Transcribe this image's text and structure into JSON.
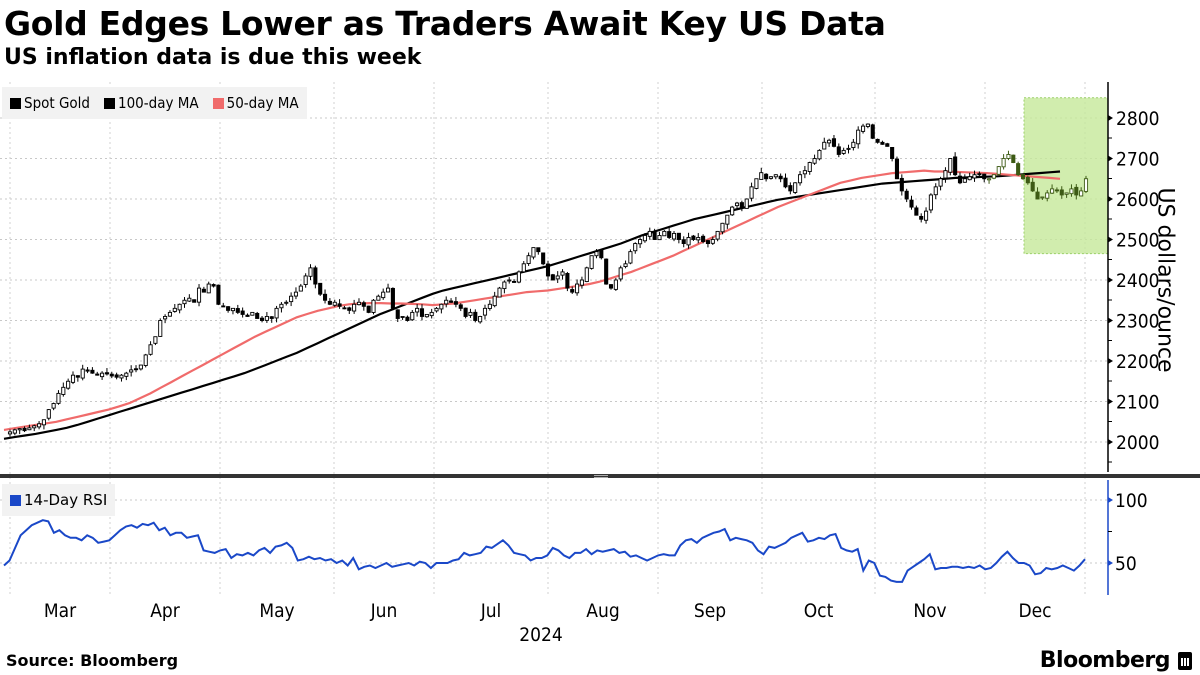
{
  "header": {
    "title": "Gold Edges Lower as Traders Await Key US Data",
    "subtitle": "US inflation data is due this week"
  },
  "footer": {
    "source": "Source: Bloomberg",
    "brand": "Bloomberg"
  },
  "colors": {
    "spot_gold": "#000000",
    "ma100": "#000000",
    "ma50": "#f06b6b",
    "rsi": "#1a48c8",
    "highlight": "#c6e89a",
    "axis_blue": "#1a48c8"
  },
  "chart_data": [
    {
      "type": "candlestick",
      "title": "Gold Edges Lower as Traders Await Key US Data",
      "subtitle": "US inflation data is due this week",
      "ylabel": "US dollars/ounce",
      "ylim": [
        1930,
        2850
      ],
      "yticks": [
        2000,
        2100,
        2200,
        2300,
        2400,
        2500,
        2600,
        2700,
        2800
      ],
      "grid": true,
      "legend": [
        {
          "name": "Spot Gold",
          "color": "#000000"
        },
        {
          "name": "100-day MA",
          "color": "#000000"
        },
        {
          "name": "50-day MA",
          "color": "#f06b6b"
        }
      ],
      "legend_position": "top-left",
      "highlight_region": {
        "x_from_index": 202,
        "x_to_index": 214,
        "y_from": 2465,
        "y_to": 2850
      },
      "ohlc_closes": [
        2025,
        2030,
        2033,
        2028,
        2035,
        2040,
        2045,
        2055,
        2080,
        2095,
        2120,
        2135,
        2150,
        2165,
        2160,
        2180,
        2175,
        2170,
        2165,
        2170,
        2168,
        2163,
        2160,
        2165,
        2170,
        2178,
        2180,
        2190,
        2215,
        2240,
        2260,
        2300,
        2310,
        2320,
        2330,
        2340,
        2350,
        2355,
        2345,
        2380,
        2370,
        2390,
        2385,
        2340,
        2335,
        2325,
        2330,
        2320,
        2315,
        2310,
        2320,
        2305,
        2300,
        2310,
        2305,
        2330,
        2340,
        2345,
        2360,
        2370,
        2385,
        2410,
        2430,
        2390,
        2365,
        2350,
        2340,
        2345,
        2335,
        2330,
        2325,
        2340,
        2345,
        2335,
        2320,
        2350,
        2360,
        2370,
        2380,
        2330,
        2305,
        2310,
        2300,
        2320,
        2330,
        2310,
        2315,
        2320,
        2330,
        2340,
        2350,
        2345,
        2340,
        2330,
        2310,
        2320,
        2300,
        2310,
        2330,
        2340,
        2360,
        2380,
        2395,
        2400,
        2395,
        2420,
        2440,
        2460,
        2480,
        2470,
        2440,
        2410,
        2400,
        2410,
        2420,
        2380,
        2370,
        2390,
        2400,
        2430,
        2460,
        2470,
        2455,
        2390,
        2380,
        2400,
        2430,
        2440,
        2470,
        2490,
        2500,
        2510,
        2520,
        2500,
        2510,
        2520,
        2505,
        2515,
        2500,
        2490,
        2505,
        2500,
        2505,
        2495,
        2490,
        2500,
        2520,
        2540,
        2560,
        2580,
        2590,
        2580,
        2600,
        2630,
        2650,
        2665,
        2650,
        2655,
        2660,
        2650,
        2630,
        2620,
        2640,
        2660,
        2670,
        2690,
        2700,
        2720,
        2740,
        2745,
        2730,
        2710,
        2720,
        2725,
        2740,
        2770,
        2780,
        2785,
        2750,
        2740,
        2735,
        2730,
        2700,
        2650,
        2620,
        2600,
        2580,
        2560,
        2550,
        2570,
        2610,
        2630,
        2650,
        2670,
        2700,
        2660,
        2640,
        2650,
        2655,
        2660,
        2660,
        2650,
        2650,
        2660,
        2680,
        2700,
        2710,
        2690,
        2660,
        2650,
        2640,
        2620,
        2600,
        2605,
        2615,
        2625,
        2620,
        2610,
        2615,
        2625,
        2610,
        2620,
        2650
      ],
      "ma50": [
        2030,
        2034,
        2038,
        2042,
        2046,
        2050,
        2056,
        2062,
        2068,
        2074,
        2080,
        2088,
        2096,
        2108,
        2120,
        2134,
        2148,
        2162,
        2176,
        2190,
        2204,
        2218,
        2232,
        2246,
        2260,
        2272,
        2284,
        2296,
        2308,
        2316,
        2324,
        2330,
        2336,
        2340,
        2342,
        2343,
        2343,
        2342,
        2342,
        2341,
        2340,
        2338,
        2340,
        2342,
        2346,
        2350,
        2354,
        2358,
        2362,
        2366,
        2370,
        2372,
        2374,
        2378,
        2382,
        2386,
        2390,
        2396,
        2404,
        2412,
        2420,
        2430,
        2440,
        2450,
        2460,
        2472,
        2484,
        2496,
        2508,
        2520,
        2532,
        2544,
        2556,
        2568,
        2580,
        2590,
        2600,
        2610,
        2620,
        2630,
        2640,
        2646,
        2652,
        2656,
        2660,
        2664,
        2666,
        2668,
        2670,
        2668,
        2668,
        2667,
        2666,
        2665,
        2664,
        2662,
        2660,
        2658,
        2656,
        2654,
        2652,
        2650
      ],
      "ma100": [
        2008,
        2012,
        2016,
        2020,
        2025,
        2030,
        2035,
        2042,
        2050,
        2058,
        2066,
        2074,
        2082,
        2090,
        2098,
        2106,
        2114,
        2122,
        2130,
        2138,
        2146,
        2154,
        2162,
        2170,
        2180,
        2190,
        2200,
        2210,
        2220,
        2232,
        2244,
        2256,
        2268,
        2280,
        2292,
        2304,
        2316,
        2326,
        2336,
        2346,
        2356,
        2366,
        2374,
        2380,
        2386,
        2392,
        2398,
        2404,
        2410,
        2416,
        2422,
        2428,
        2434,
        2442,
        2450,
        2458,
        2466,
        2474,
        2482,
        2490,
        2500,
        2510,
        2518,
        2526,
        2534,
        2542,
        2550,
        2556,
        2562,
        2568,
        2574,
        2580,
        2586,
        2592,
        2598,
        2602,
        2606,
        2610,
        2614,
        2618,
        2622,
        2626,
        2630,
        2634,
        2638,
        2640,
        2642,
        2644,
        2646,
        2648,
        2650,
        2652,
        2653,
        2654,
        2655,
        2656,
        2658,
        2660,
        2662,
        2664,
        2666,
        2668
      ]
    },
    {
      "type": "line",
      "title": "14-Day RSI",
      "ylim": [
        22,
        118
      ],
      "yticks": [
        50,
        100
      ],
      "grid": true,
      "legend": [
        {
          "name": "14-Day RSI",
          "color": "#1a48c8"
        }
      ],
      "legend_position": "top-left",
      "values": [
        48,
        52,
        62,
        72,
        76,
        80,
        82,
        84,
        83,
        74,
        76,
        72,
        70,
        70,
        68,
        72,
        70,
        66,
        67,
        68,
        72,
        76,
        79,
        80,
        78,
        81,
        80,
        82,
        76,
        78,
        72,
        74,
        74,
        70,
        71,
        72,
        60,
        59,
        58,
        60,
        61,
        54,
        57,
        56,
        58,
        56,
        60,
        62,
        58,
        63,
        64,
        66,
        62,
        52,
        53,
        55,
        53,
        54,
        52,
        53,
        50,
        52,
        48,
        54,
        45,
        47,
        48,
        46,
        48,
        50,
        47,
        48,
        49,
        50,
        48,
        51,
        50,
        46,
        50,
        50,
        50,
        52,
        53,
        58,
        56,
        57,
        58,
        63,
        62,
        65,
        68,
        64,
        58,
        57,
        56,
        52,
        54,
        54,
        56,
        62,
        60,
        56,
        54,
        58,
        58,
        61,
        57,
        60,
        59,
        60,
        61,
        58,
        59,
        55,
        56,
        54,
        52,
        54,
        56,
        57,
        56,
        56,
        64,
        68,
        69,
        66,
        70,
        72,
        74,
        75,
        77,
        68,
        70,
        69,
        68,
        66,
        60,
        57,
        63,
        62,
        64,
        66,
        70,
        72,
        74,
        67,
        68,
        70,
        69,
        72,
        73,
        62,
        60,
        59,
        61,
        44,
        52,
        50,
        40,
        39,
        36,
        35,
        35,
        44,
        47,
        50,
        53,
        57,
        45,
        46,
        46,
        47,
        47,
        46,
        47,
        46,
        48,
        45,
        46,
        50,
        55,
        59,
        54,
        50,
        50,
        48,
        41,
        42,
        46,
        45,
        46,
        48,
        46,
        44,
        48,
        53
      ]
    }
  ],
  "xaxis": {
    "months": [
      "Mar",
      "Apr",
      "May",
      "Jun",
      "Jul",
      "Aug",
      "Sep",
      "Oct",
      "Nov",
      "Dec"
    ],
    "year": "2024"
  }
}
